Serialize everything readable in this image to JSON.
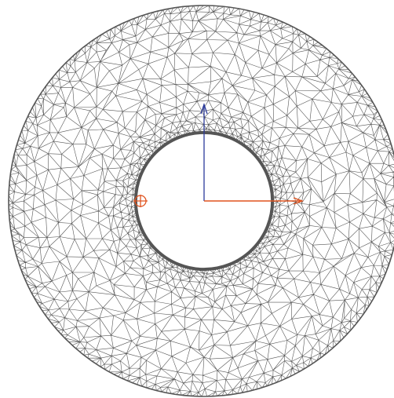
{
  "viewport": {
    "background": "#ffffff"
  },
  "mesh": {
    "shape": "annulus",
    "element_type": "triangle",
    "edge_color": "#555555",
    "boundary_color": "#555555",
    "outer_radius_ratio": 1.0,
    "inner_radius_ratio": 0.35
  },
  "axes": {
    "x_axis_color": "#e0531f",
    "y_axis_color": "#2b3a9a",
    "x_axis_arrow": "arrow-right-icon",
    "y_axis_arrow": "arrow-up-icon"
  },
  "markers": {
    "origin_marker_color": "#e0531f",
    "origin_marker_icon": "crosshair-circle-icon"
  }
}
